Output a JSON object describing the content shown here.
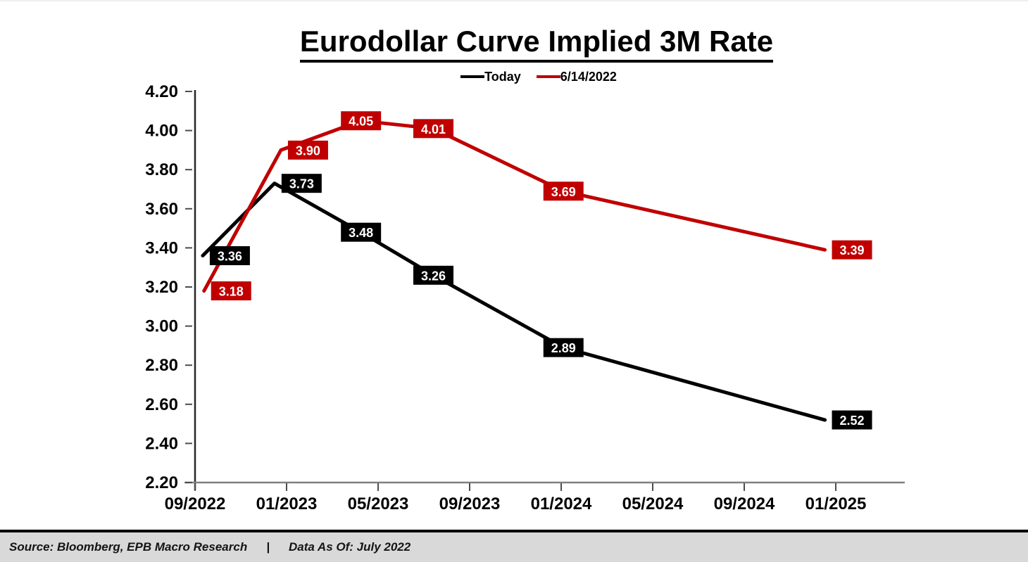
{
  "page": {
    "title": "Eurodollar Curve Implied 3M Rate"
  },
  "chart_data": {
    "type": "line",
    "title": "Eurodollar Curve Implied 3M Rate",
    "x_tick_labels": [
      "09/2022",
      "01/2023",
      "05/2023",
      "09/2023",
      "01/2024",
      "05/2024",
      "09/2024",
      "01/2025"
    ],
    "ylim": [
      2.2,
      4.2
    ],
    "y_tick_step": 0.2,
    "grid": false,
    "legend_position": "top-center",
    "series": [
      {
        "name": "Today",
        "color": "#000000",
        "values": [
          3.36,
          3.73,
          3.48,
          3.26,
          2.89,
          2.52
        ],
        "x_frac": [
          0.012,
          0.124,
          0.259,
          0.372,
          0.575,
          0.983
        ],
        "label_side": [
          "right",
          "right",
          "center",
          "center",
          "center",
          "right"
        ]
      },
      {
        "name": "6/14/2022",
        "color": "#C00000",
        "values": [
          3.18,
          3.9,
          4.05,
          4.01,
          3.69,
          3.39
        ],
        "x_frac": [
          0.014,
          0.134,
          0.259,
          0.372,
          0.575,
          0.983
        ],
        "label_side": [
          "right",
          "right",
          "center",
          "center",
          "center",
          "right"
        ]
      }
    ]
  },
  "footer": {
    "source": "Source: Bloomberg, EPB Macro Research",
    "separator": "|",
    "data_as_of": "Data As Of: July 2022"
  },
  "colors": {
    "today_series": "#000000",
    "prior_series": "#C00000",
    "y_axis": "#262626",
    "x_axis": "#808080",
    "tick": "#4d4d4d",
    "footer_bg": "#D9D9D9",
    "data_label_text": "#FFFFFF"
  }
}
